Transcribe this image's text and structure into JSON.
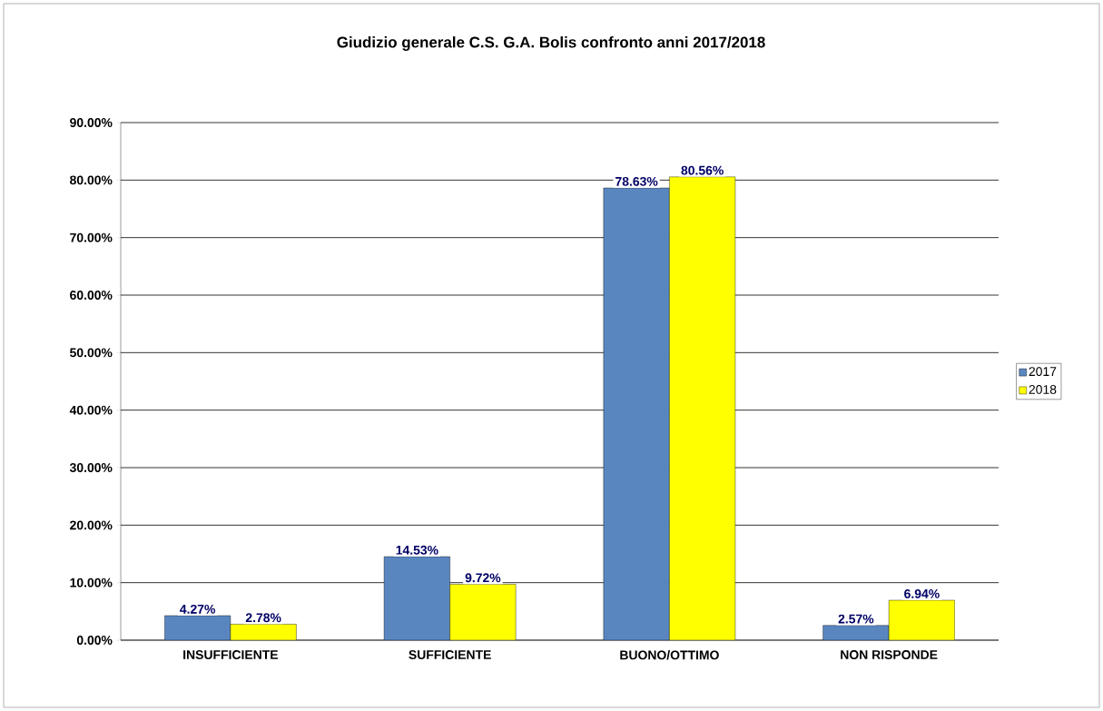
{
  "chart_data": {
    "type": "bar",
    "title": "Giudizio generale C.S. G.A. Bolis confronto anni 2017/2018",
    "categories": [
      "INSUFFICIENTE",
      "SUFFICIENTE",
      "BUONO/OTTIMO",
      "NON RISPONDE"
    ],
    "series": [
      {
        "name": "2017",
        "color": "#5a86c0",
        "values": [
          4.27,
          14.53,
          78.63,
          2.57
        ],
        "value_labels": [
          "4.27%",
          "14.53%",
          "78.63%",
          "2.57%"
        ]
      },
      {
        "name": "2018",
        "color": "#ffff00",
        "values": [
          2.78,
          9.72,
          80.56,
          6.94
        ],
        "value_labels": [
          "2.78%",
          "9.72%",
          "80.56%",
          "6.94%"
        ]
      }
    ],
    "ylim": [
      0,
      90
    ],
    "yticks": [
      {
        "value": 0,
        "label": "0.00%"
      },
      {
        "value": 10,
        "label": "10.00%"
      },
      {
        "value": 20,
        "label": "20.00%"
      },
      {
        "value": 30,
        "label": "30.00%"
      },
      {
        "value": 40,
        "label": "40.00%"
      },
      {
        "value": 50,
        "label": "50.00%"
      },
      {
        "value": 60,
        "label": "60.00%"
      },
      {
        "value": 70,
        "label": "70.00%"
      },
      {
        "value": 80,
        "label": "80.00%"
      },
      {
        "value": 90,
        "label": "90.00%"
      }
    ],
    "grid": "y",
    "legend": "right"
  }
}
